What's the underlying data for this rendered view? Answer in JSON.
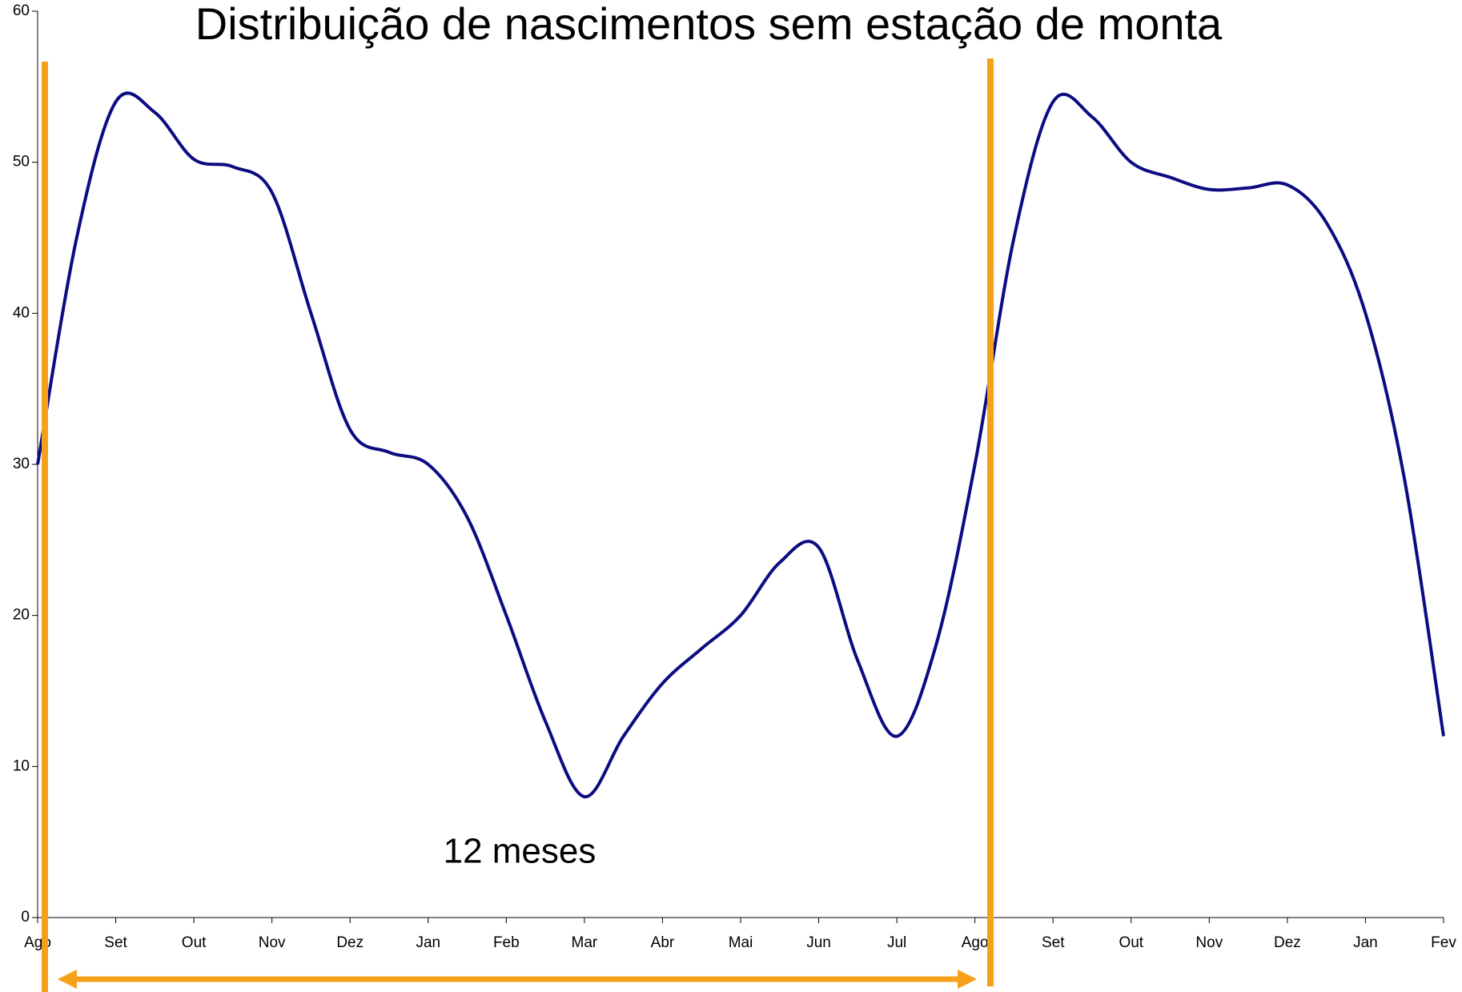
{
  "chart_data": {
    "type": "line",
    "title": "Distribuição de nascimentos sem estação de monta",
    "annotation": "12 meses",
    "categories": [
      "Ago",
      null,
      "Set",
      null,
      "Out",
      null,
      "Nov",
      null,
      "Dez",
      null,
      "Jan",
      null,
      "Feb",
      null,
      "Mar",
      null,
      "Abr",
      null,
      "Mai",
      null,
      "Jun",
      null,
      "Jul",
      null,
      "Ago",
      null,
      "Set",
      null,
      "Out",
      null,
      "Nov",
      null,
      "Dez",
      null,
      "Jan",
      null,
      "Fev"
    ],
    "series": [
      {
        "color": "#0c0c82",
        "values": [
          30,
          45,
          54,
          53.3,
          50.2,
          49.7,
          48,
          40,
          32.3,
          30.8,
          30,
          26.5,
          20,
          13,
          8,
          12,
          15.5,
          17.8,
          20,
          23.5,
          24.5,
          17,
          12,
          18,
          30,
          45,
          54,
          53,
          50,
          49,
          48.2,
          48.3,
          48.5,
          46,
          40,
          29,
          12
        ]
      }
    ],
    "ylim": [
      0,
      60
    ],
    "yticks": [
      0,
      10,
      20,
      30,
      40,
      50,
      60
    ]
  }
}
